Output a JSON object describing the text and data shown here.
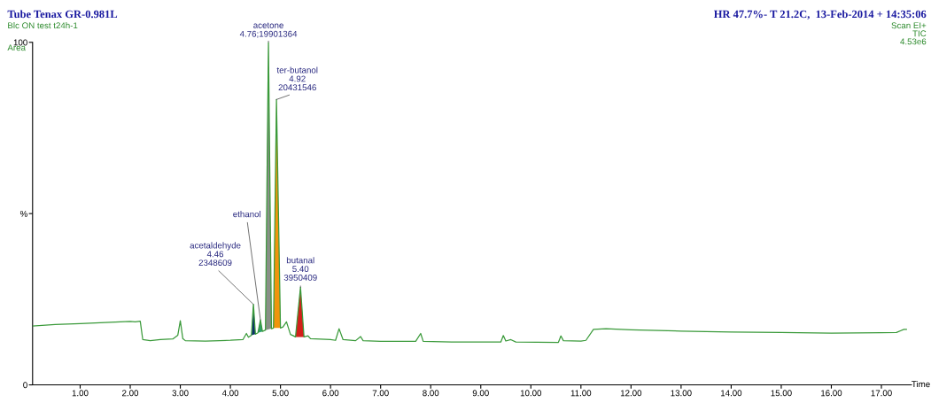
{
  "chart_data": {
    "type": "line",
    "title": "Tube Tenax GR-0.981L",
    "subtitle": "Blc ON test t24h-1",
    "xlabel": "Time",
    "xlim": [
      0.05,
      17.6
    ],
    "ylim": [
      0,
      100
    ],
    "xticks": [
      {
        "value": 1,
        "label": "1.00"
      },
      {
        "value": 2,
        "label": "2.00"
      },
      {
        "value": 3,
        "label": "3.00"
      },
      {
        "value": 4,
        "label": "4.00"
      },
      {
        "value": 5,
        "label": "5.00"
      },
      {
        "value": 6,
        "label": "6.00"
      },
      {
        "value": 7,
        "label": "7.00"
      },
      {
        "value": 8,
        "label": "8.00"
      },
      {
        "value": 9,
        "label": "9.00"
      },
      {
        "value": 10,
        "label": "10.00"
      },
      {
        "value": 11,
        "label": "11.00"
      },
      {
        "value": 12,
        "label": "12.00"
      },
      {
        "value": 13,
        "label": "13.00"
      },
      {
        "value": 14,
        "label": "14.00"
      },
      {
        "value": 15,
        "label": "15.00"
      },
      {
        "value": 16,
        "label": "16.00"
      },
      {
        "value": 17,
        "label": "17.00"
      }
    ],
    "yticks": [
      0,
      {
        "value": 50,
        "label": "%"
      },
      100
    ],
    "grid": false,
    "marker": "none",
    "line_style": "solid",
    "series": [
      {
        "type": "area",
        "color": "#0d2f6b",
        "x": [
          4.42,
          4.46,
          4.5
        ],
        "values": [
          14.5,
          23.5,
          14.8
        ]
      },
      {
        "type": "area",
        "color": "#2e9e6e",
        "x": [
          4.55,
          4.6,
          4.64
        ],
        "values": [
          15.2,
          19.0,
          15.6
        ]
      },
      {
        "type": "area",
        "color": "#8a8f88",
        "x": [
          4.7,
          4.76,
          4.82
        ],
        "values": [
          16.0,
          100,
          16.4
        ]
      },
      {
        "type": "area",
        "color": "#f0950c",
        "x": [
          4.86,
          4.92,
          5.0
        ],
        "values": [
          16.6,
          83.3,
          16.6
        ]
      },
      {
        "type": "area",
        "color": "#d2201a",
        "x": [
          5.3,
          5.4,
          5.47
        ],
        "values": [
          14.0,
          28.5,
          14.0
        ]
      },
      {
        "color": "#3a9a3a",
        "x": [
          0.05,
          0.5,
          1.0,
          1.5,
          2.0,
          2.1,
          2.2,
          2.25,
          2.4,
          2.6,
          2.85,
          2.95,
          3.0,
          3.05,
          3.1,
          3.5,
          4.0,
          4.25,
          4.32,
          4.36,
          4.42,
          4.46,
          4.5,
          4.55,
          4.6,
          4.64,
          4.7,
          4.76,
          4.82,
          4.86,
          4.92,
          5.0,
          5.05,
          5.12,
          5.2,
          5.25,
          5.3,
          5.4,
          5.47,
          5.55,
          5.6,
          6.0,
          6.1,
          6.17,
          6.25,
          6.5,
          6.6,
          6.65,
          7.0,
          7.7,
          7.8,
          7.85,
          8.5,
          9.4,
          9.45,
          9.5,
          9.6,
          9.7,
          10.55,
          10.6,
          10.65,
          11.0,
          11.1,
          11.25,
          11.5,
          12.0,
          13.0,
          14.0,
          15.0,
          16.0,
          17.0,
          17.3,
          17.45,
          17.5
        ],
        "values": [
          17.2,
          17.6,
          17.9,
          18.2,
          18.5,
          18.4,
          18.6,
          13.2,
          12.9,
          13.2,
          13.4,
          14.5,
          18.7,
          13.5,
          12.9,
          12.8,
          13.0,
          13.2,
          15.0,
          13.9,
          14.5,
          23.5,
          14.8,
          15.2,
          19.0,
          15.6,
          16.0,
          100,
          16.4,
          16.6,
          83.3,
          16.6,
          16.9,
          18.4,
          14.7,
          14.4,
          14.0,
          28.5,
          14.0,
          14.3,
          13.5,
          13.2,
          13.0,
          16.4,
          13.2,
          12.9,
          14.1,
          12.9,
          12.7,
          12.7,
          15.0,
          12.7,
          12.5,
          12.5,
          14.4,
          12.8,
          13.2,
          12.5,
          12.4,
          14.3,
          12.9,
          12.8,
          13.0,
          16.2,
          16.4,
          16.1,
          15.7,
          15.4,
          15.3,
          15.1,
          15.2,
          15.3,
          16.2,
          16.2
        ]
      }
    ],
    "annotations": [
      "Area",
      "HR 47.7%- T 21.2C,  13-Feb-2014 + 14:35:06",
      "Scan EI+\nTIC\n4.53e6",
      {
        "text": "acetaldehyde\n4.46\n2348609",
        "x": 4.46,
        "y": 23.5
      },
      {
        "text": "ethanol",
        "x": 4.6,
        "y": 19.0
      },
      {
        "text": "acetone\n4.76;19901364",
        "x": 4.76,
        "y": 100
      },
      {
        "text": "ter-butanol\n4.92\n20431546",
        "x": 4.92,
        "y": 83.3
      },
      {
        "text": "butanal\n5.40\n3950409",
        "x": 5.4,
        "y": 28.5
      }
    ]
  }
}
